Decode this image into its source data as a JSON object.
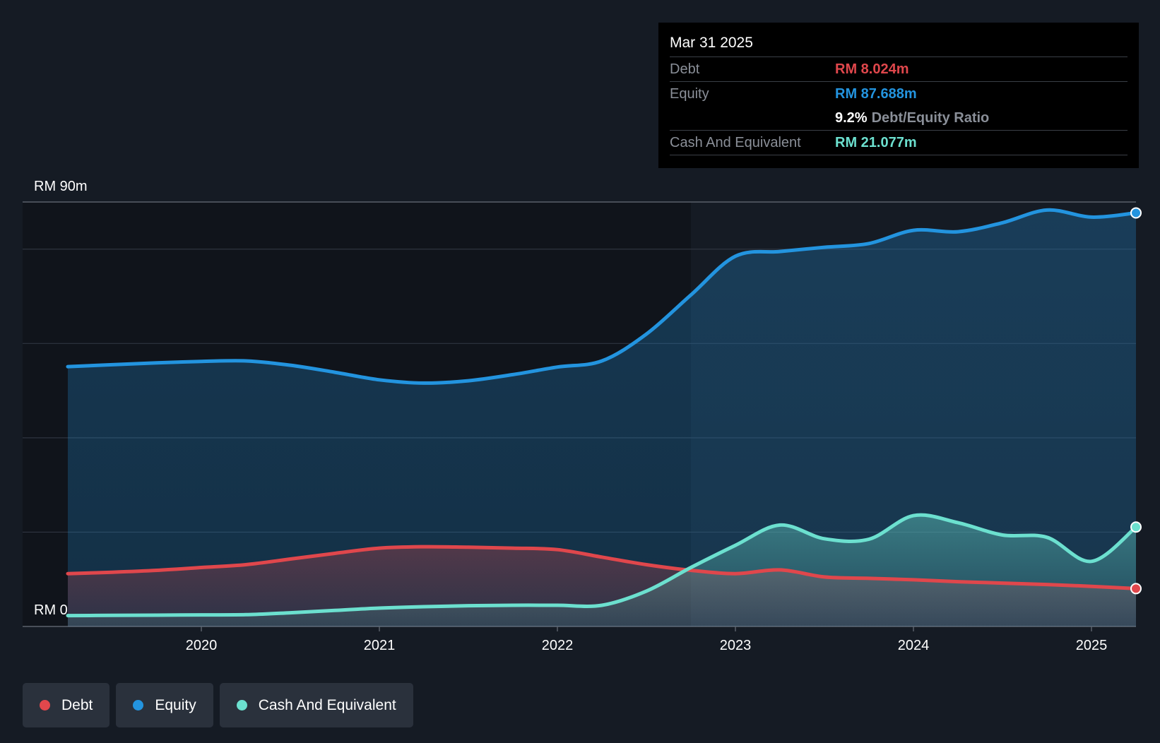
{
  "colors": {
    "background": "#151b24",
    "debt": "#e0474c",
    "equity": "#2394df",
    "cash": "#6ce0cf",
    "grid": "#2e3540",
    "text": "#ffffff",
    "muted": "#8a8f98"
  },
  "tooltip": {
    "date": "Mar 31 2025",
    "debt_label": "Debt",
    "debt_value": "RM 8.024m",
    "equity_label": "Equity",
    "equity_value": "RM 87.688m",
    "ratio_value": "9.2%",
    "ratio_label": "Debt/Equity Ratio",
    "cash_label": "Cash And Equivalent",
    "cash_value": "RM 21.077m"
  },
  "legend": [
    {
      "label": "Debt",
      "color": "#e0474c"
    },
    {
      "label": "Equity",
      "color": "#2394df"
    },
    {
      "label": "Cash And Equivalent",
      "color": "#6ce0cf"
    }
  ],
  "chart_data": {
    "type": "area",
    "title": "",
    "y_top_label": "RM 90m",
    "y_bottom_label": "RM 0",
    "ylim": [
      0,
      90
    ],
    "xlim": [
      2019.25,
      2025.25
    ],
    "x_ticks": [
      {
        "value": 2020,
        "label": "2020"
      },
      {
        "value": 2021,
        "label": "2021"
      },
      {
        "value": 2022,
        "label": "2022"
      },
      {
        "value": 2023,
        "label": "2023"
      },
      {
        "value": 2024,
        "label": "2024"
      },
      {
        "value": 2025,
        "label": "2025"
      }
    ],
    "gridlines": [
      0,
      20,
      40,
      60,
      80,
      90
    ],
    "highlight_from": 2022.75,
    "series": [
      {
        "name": "Equity",
        "points": [
          [
            2019.25,
            55.1
          ],
          [
            2019.5,
            55.5
          ],
          [
            2019.75,
            55.9
          ],
          [
            2020.0,
            56.2
          ],
          [
            2020.25,
            56.3
          ],
          [
            2020.5,
            55.4
          ],
          [
            2020.75,
            53.9
          ],
          [
            2021.0,
            52.3
          ],
          [
            2021.25,
            51.6
          ],
          [
            2021.5,
            52.1
          ],
          [
            2021.75,
            53.4
          ],
          [
            2022.0,
            55.0
          ],
          [
            2022.25,
            56.3
          ],
          [
            2022.5,
            62.0
          ],
          [
            2022.75,
            70.3
          ],
          [
            2023.0,
            78.5
          ],
          [
            2023.25,
            79.5
          ],
          [
            2023.5,
            80.4
          ],
          [
            2023.75,
            81.2
          ],
          [
            2024.0,
            84.0
          ],
          [
            2024.25,
            83.7
          ],
          [
            2024.5,
            85.6
          ],
          [
            2024.75,
            88.3
          ],
          [
            2025.0,
            86.8
          ],
          [
            2025.25,
            87.688
          ]
        ],
        "end_marker": true
      },
      {
        "name": "Debt",
        "points": [
          [
            2019.25,
            11.2
          ],
          [
            2019.5,
            11.5
          ],
          [
            2019.75,
            11.9
          ],
          [
            2020.0,
            12.5
          ],
          [
            2020.25,
            13.1
          ],
          [
            2020.5,
            14.3
          ],
          [
            2020.75,
            15.5
          ],
          [
            2021.0,
            16.6
          ],
          [
            2021.25,
            16.9
          ],
          [
            2021.5,
            16.8
          ],
          [
            2021.75,
            16.6
          ],
          [
            2022.0,
            16.3
          ],
          [
            2022.25,
            14.7
          ],
          [
            2022.5,
            13.1
          ],
          [
            2022.75,
            11.9
          ],
          [
            2023.0,
            11.2
          ],
          [
            2023.25,
            12.0
          ],
          [
            2023.5,
            10.5
          ],
          [
            2023.75,
            10.2
          ],
          [
            2024.0,
            9.9
          ],
          [
            2024.25,
            9.5
          ],
          [
            2024.5,
            9.2
          ],
          [
            2024.75,
            8.9
          ],
          [
            2025.0,
            8.5
          ],
          [
            2025.25,
            8.024
          ]
        ],
        "end_marker": true
      },
      {
        "name": "Cash And Equivalent",
        "points": [
          [
            2019.25,
            2.3
          ],
          [
            2019.5,
            2.35
          ],
          [
            2019.75,
            2.4
          ],
          [
            2020.0,
            2.45
          ],
          [
            2020.25,
            2.5
          ],
          [
            2020.5,
            2.9
          ],
          [
            2020.75,
            3.4
          ],
          [
            2021.0,
            3.9
          ],
          [
            2021.25,
            4.2
          ],
          [
            2021.5,
            4.4
          ],
          [
            2021.75,
            4.5
          ],
          [
            2022.0,
            4.5
          ],
          [
            2022.25,
            4.5
          ],
          [
            2022.5,
            7.5
          ],
          [
            2022.75,
            12.5
          ],
          [
            2023.0,
            17.2
          ],
          [
            2023.25,
            21.5
          ],
          [
            2023.5,
            18.6
          ],
          [
            2023.75,
            18.5
          ],
          [
            2024.0,
            23.5
          ],
          [
            2024.25,
            22.0
          ],
          [
            2024.5,
            19.4
          ],
          [
            2024.75,
            18.9
          ],
          [
            2025.0,
            13.8
          ],
          [
            2025.25,
            21.077
          ]
        ],
        "end_marker": true
      }
    ]
  }
}
